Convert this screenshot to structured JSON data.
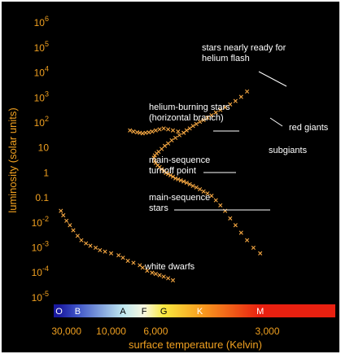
{
  "chart_data": {
    "type": "scatter",
    "title": "",
    "xlabel": "surface temperature (Kelvin)",
    "ylabel": "luminosity (solar units)",
    "x_scale": "reciprocal",
    "y_scale": "log",
    "xlim": [
      70000,
      2300
    ],
    "ylim": [
      6.3e-06,
      2500000
    ],
    "x_ticks": [
      {
        "value": 30000,
        "label": "30,000"
      },
      {
        "value": 10000,
        "label": "10,000"
      },
      {
        "value": 6000,
        "label": "6,000"
      },
      {
        "value": 3000,
        "label": "3,000"
      }
    ],
    "y_ticks": [
      {
        "value": 1000000,
        "label": "10",
        "exp": "6"
      },
      {
        "value": 100000,
        "label": "10",
        "exp": "5"
      },
      {
        "value": 10000,
        "label": "10",
        "exp": "4"
      },
      {
        "value": 1000,
        "label": "10",
        "exp": "3"
      },
      {
        "value": 100,
        "label": "10",
        "exp": "2"
      },
      {
        "value": 10,
        "label": "10",
        "exp": ""
      },
      {
        "value": 1,
        "label": "1",
        "exp": ""
      },
      {
        "value": 0.1,
        "label": "0.1",
        "exp": ""
      },
      {
        "value": 0.01,
        "label": "10",
        "exp": "-2"
      },
      {
        "value": 0.001,
        "label": "10",
        "exp": "-3"
      },
      {
        "value": 0.0001,
        "label": "10",
        "exp": "-4"
      },
      {
        "value": 1e-05,
        "label": "10",
        "exp": "-5"
      }
    ],
    "spectral_classes": [
      {
        "label": "O",
        "temp": 45000,
        "color": "#1a1aa0"
      },
      {
        "label": "B",
        "temp": 20000,
        "color": "#3f55c8"
      },
      {
        "label": "A",
        "temp": 8500,
        "color": "#bfe8f0"
      },
      {
        "label": "F",
        "temp": 6700,
        "color": "#f8f8e0"
      },
      {
        "label": "G",
        "temp": 5600,
        "color": "#f8e840"
      },
      {
        "label": "K",
        "temp": 4300,
        "color": "#f8a020"
      },
      {
        "label": "M",
        "temp": 3100,
        "color": "#e82010"
      }
    ],
    "series": [
      {
        "color": "#f5a742",
        "note_points": "approximate; star positions estimated from the image",
        "x": [
          3100,
          3200,
          3300,
          3400,
          3500,
          3600,
          3700,
          3800,
          3900,
          4000,
          4100,
          4200,
          4300,
          4400,
          4500,
          4600,
          4700,
          4800,
          4900,
          5000,
          5100,
          5200,
          5300,
          5400,
          5500,
          5600,
          5700,
          5800,
          5900,
          6000,
          6050,
          6100,
          6050,
          5950,
          5850,
          5700,
          5550,
          5400,
          5250,
          5100,
          4950,
          4800,
          4700,
          4600,
          4500,
          4400,
          4300,
          4200,
          4100,
          4000,
          3900,
          3800,
          3700,
          3600,
          3500,
          3400,
          3300,
          4800,
          5000,
          5200,
          5400,
          5600,
          5800,
          6000,
          6200,
          6400,
          6600,
          6800,
          7000,
          7200,
          7500,
          7800,
          40000,
          35000,
          30000,
          26000,
          23000,
          20000,
          18000,
          16000,
          14500,
          13000,
          12000,
          11000,
          10000,
          9000,
          8500,
          8000,
          7500,
          7000,
          6800,
          6500,
          6200,
          6000,
          5800,
          5600,
          5400,
          5200
        ],
        "y": [
          0.0006,
          0.001,
          0.002,
          0.004,
          0.008,
          0.015,
          0.03,
          0.05,
          0.08,
          0.12,
          0.15,
          0.18,
          0.22,
          0.26,
          0.3,
          0.35,
          0.4,
          0.45,
          0.5,
          0.55,
          0.6,
          0.7,
          0.8,
          0.9,
          1.0,
          1.2,
          1.4,
          1.7,
          2.0,
          2.5,
          3.0,
          4.0,
          5.0,
          6.0,
          7.0,
          9.0,
          12,
          15,
          20,
          25,
          32,
          40,
          50,
          60,
          75,
          90,
          110,
          130,
          160,
          200,
          260,
          330,
          420,
          550,
          750,
          1100,
          1800,
          40,
          45,
          50,
          55,
          60,
          55,
          50,
          45,
          42,
          40,
          38,
          40,
          42,
          45,
          50,
          0.03,
          0.02,
          0.012,
          0.008,
          0.005,
          0.003,
          0.002,
          0.0015,
          0.0012,
          0.001,
          0.0008,
          0.0007,
          0.0006,
          0.0005,
          0.0004,
          0.0003,
          0.00025,
          0.0002,
          0.00016,
          0.00012,
          0.0001,
          9e-05,
          8e-05,
          7e-05,
          6e-05,
          5e-05
        ]
      }
    ],
    "annotations": [
      {
        "lines": [
          "stars nearly ready for",
          "helium flash"
        ],
        "x": 3450,
        "y": 2000
      },
      {
        "lines": [
          "helium-burning stars",
          "(horizontal branch)"
        ],
        "x": 5400,
        "y": 50
      },
      {
        "lines": [
          "red giants"
        ],
        "x": 4000,
        "y": 150
      },
      {
        "lines": [
          "subgiants"
        ],
        "x": 0,
        "y": 0
      },
      {
        "lines": [
          "main-sequence",
          "turnoff point"
        ],
        "x": 5800,
        "y": 1.5
      },
      {
        "lines": [
          "main-sequence",
          "stars"
        ],
        "x": 4400,
        "y": 0.15
      },
      {
        "lines": [
          "white dwarfs"
        ],
        "x": 0,
        "y": 0
      }
    ],
    "grid": false,
    "legend": "none",
    "colors": {
      "plot_background": "#000000",
      "axis_text": "#f0a020",
      "annotation_text": "#ffffff",
      "point": "#f5a742"
    }
  }
}
